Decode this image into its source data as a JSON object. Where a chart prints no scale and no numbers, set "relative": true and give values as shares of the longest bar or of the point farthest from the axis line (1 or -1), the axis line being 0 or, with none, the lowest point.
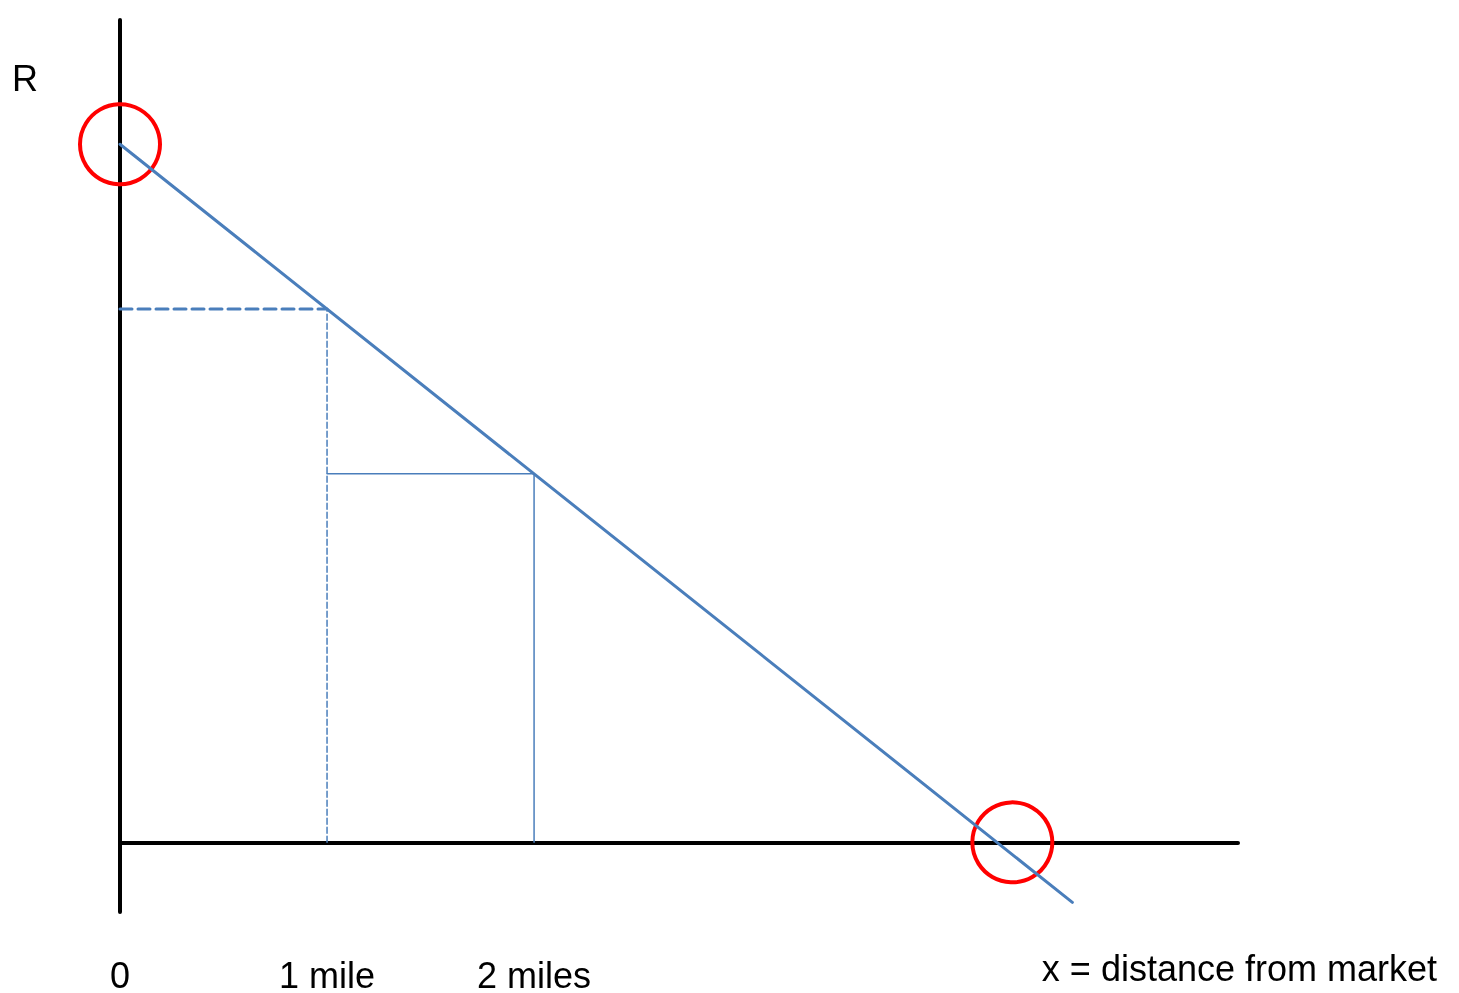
{
  "chart_data": {
    "type": "line",
    "relative": true,
    "xlabel": "x = distance from market",
    "ylabel": "R",
    "xlim": [
      0,
      5.4
    ],
    "xticks": [
      0,
      {
        "value": 1,
        "label": "1 mile"
      },
      {
        "value": 2,
        "label": "2 miles"
      }
    ],
    "grid": false,
    "marker": "none",
    "series": [
      {
        "color": "#4a7ebb",
        "x": [
          0,
          4.6
        ],
        "values": [
          1,
          -0.086
        ],
        "line_style": "solid"
      },
      {
        "color": "#4a7ebb",
        "x": [
          0,
          1
        ],
        "values": [
          0.764,
          0.764
        ],
        "line_style": "dashed"
      },
      {
        "color": "#4a7ebb",
        "x": [
          1,
          1
        ],
        "values": [
          0,
          0.764
        ],
        "line_style": "dashed"
      },
      {
        "color": "#4a7ebb",
        "x": [
          1,
          2
        ],
        "values": [
          0.528,
          0.528
        ],
        "line_style": "solid"
      },
      {
        "color": "#4a7ebb",
        "x": [
          2,
          2
        ],
        "values": [
          0,
          0.528
        ],
        "line_style": "solid"
      },
      {
        "type": "scatter",
        "marker": "circle",
        "color": "#ff0000",
        "x": [
          0,
          4.31
        ],
        "values": [
          1,
          0
        ]
      }
    ]
  }
}
